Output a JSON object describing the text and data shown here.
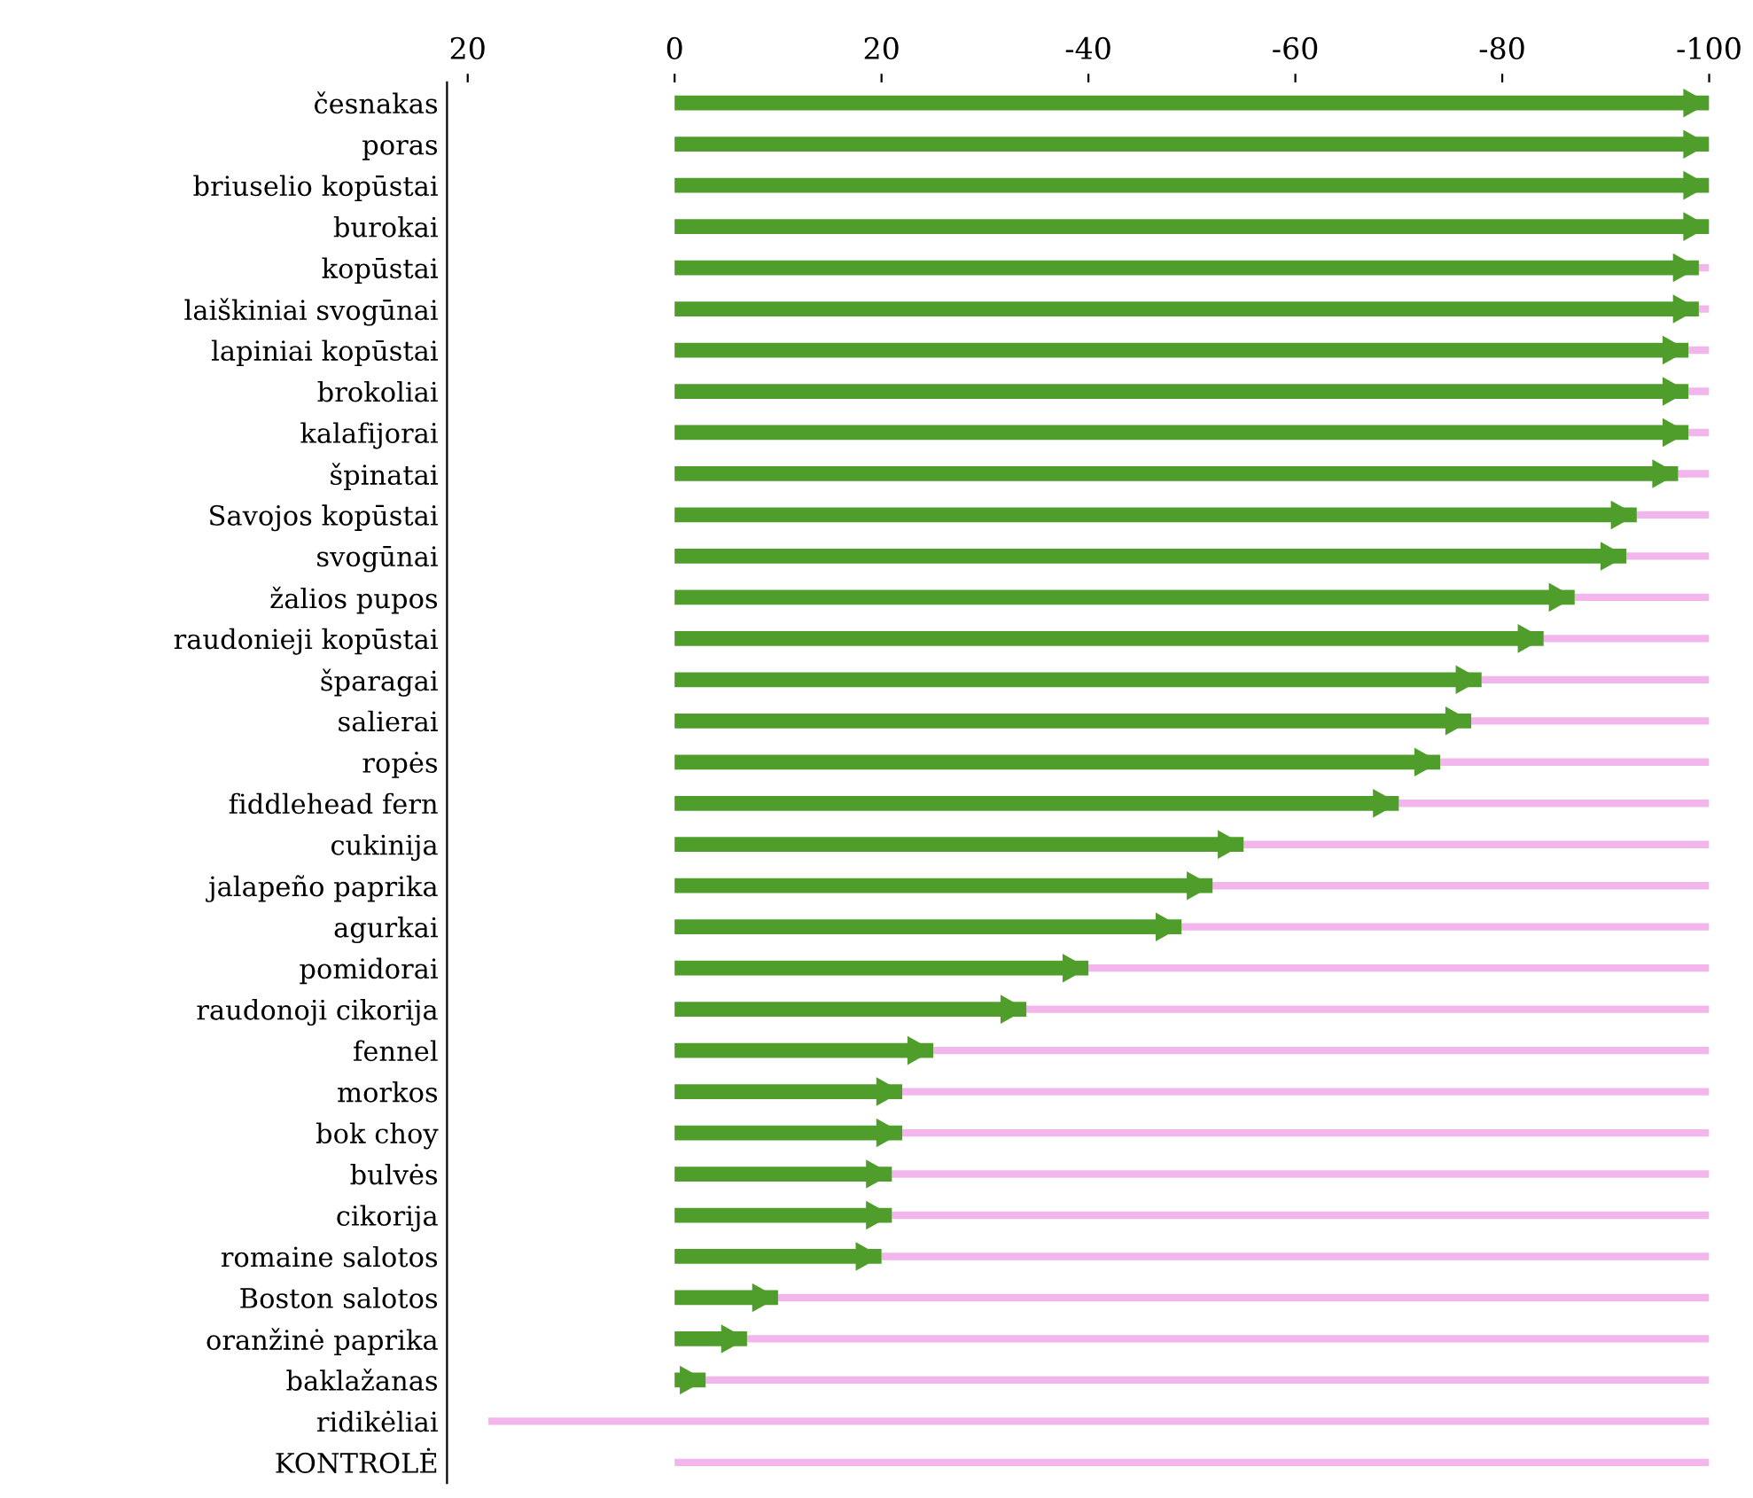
{
  "chart_data": {
    "type": "bar",
    "orientation": "horizontal",
    "categories": [
      "česnakas",
      "poras",
      "briuselio kopūstai",
      "burokai",
      "kopūstai",
      "laiškiniai svogūnai",
      "lapiniai kopūstai",
      "brokoliai",
      "kalafijorai",
      "špinatai",
      "Savojos kopūstai",
      "svogūnai",
      "žalios pupos",
      "raudonieji kopūstai",
      "šparagai",
      "salierai",
      "ropės",
      "fiddlehead fern",
      "cukinija",
      "jalapeño paprika",
      "agurkai",
      "pomidorai",
      "raudonoji cikorija",
      "fennel",
      "morkos",
      "bok choy",
      "bulvės",
      "cikorija",
      "romaine salotos",
      "Boston salotos",
      "oranžinė paprika",
      "baklažanas",
      "ridikėliai",
      "KONTROLĖ"
    ],
    "series": [
      {
        "color": "#4f9e2c",
        "values": [
          -100,
          -100,
          -100,
          -100,
          -99,
          -99,
          -98,
          -98,
          -98,
          -97,
          -93,
          -92,
          -87,
          -84,
          -78,
          -77,
          -74,
          -70,
          -55,
          -52,
          -49,
          -40,
          -34,
          -25,
          -22,
          -22,
          -21,
          -21,
          -20,
          -10,
          -7,
          -3,
          null,
          null
        ]
      },
      {
        "color": "#f2b6ec",
        "base": [
          null,
          null,
          null,
          null,
          -99,
          -99,
          -98,
          -98,
          -98,
          -97,
          -93,
          -92,
          -87,
          -84,
          -78,
          -77,
          -74,
          -70,
          -55,
          -52,
          -49,
          -40,
          -34,
          -25,
          -22,
          -22,
          -21,
          -21,
          -20,
          -10,
          -7,
          -3,
          18,
          0
        ],
        "values": [
          null,
          null,
          null,
          null,
          -1,
          -1,
          -2,
          -2,
          -2,
          -3,
          -7,
          -8,
          -13,
          -16,
          -22,
          -23,
          -26,
          -30,
          -45,
          -48,
          -51,
          -60,
          -66,
          -75,
          -78,
          -78,
          -79,
          -79,
          -80,
          -90,
          -93,
          -97,
          -118,
          -100
        ]
      }
    ],
    "xlim": [
      22,
      -100
    ],
    "xticks": [
      20,
      0,
      {
        "value": -20,
        "label": "20"
      },
      -40,
      -60,
      -80,
      -100
    ]
  }
}
